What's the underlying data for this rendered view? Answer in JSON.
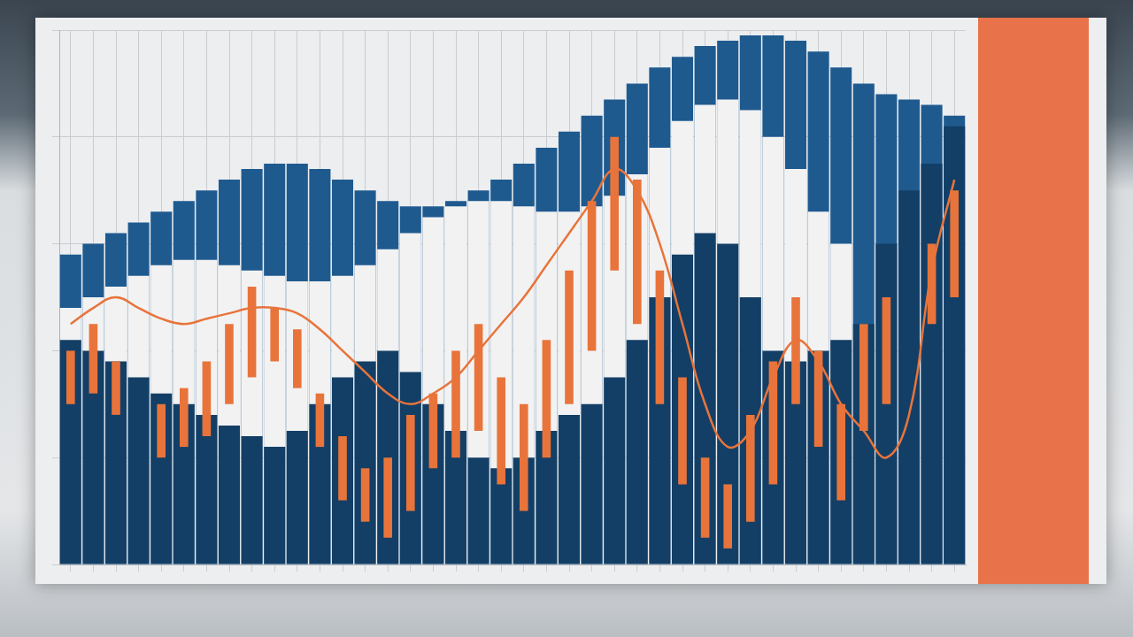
{
  "chart_data": {
    "type": "bar",
    "categories": [
      null,
      null,
      null,
      null,
      null,
      null,
      null,
      null,
      null,
      null,
      null,
      null,
      null,
      null,
      null,
      null,
      null,
      null,
      null,
      null,
      null,
      null,
      null,
      null,
      null,
      null,
      null,
      null,
      null,
      null,
      null,
      null,
      null,
      null,
      null,
      null,
      null,
      null,
      null,
      null
    ],
    "ylim": [
      0,
      100
    ],
    "yticks": [
      0,
      20,
      40,
      60,
      80,
      100
    ],
    "grid": true,
    "tick_labels": false,
    "series": [
      {
        "type": "bar",
        "color": "#1f5a8f",
        "values": [
          58,
          60,
          62,
          64,
          66,
          68,
          70,
          72,
          74,
          75,
          75,
          74,
          72,
          70,
          68,
          67,
          67,
          68,
          70,
          72,
          75,
          78,
          81,
          84,
          87,
          90,
          93,
          95,
          97,
          98,
          99,
          99,
          98,
          96,
          93,
          90,
          88,
          87,
          86,
          84
        ]
      },
      {
        "type": "bar",
        "color": "#f2f2f2",
        "values": [
          48,
          50,
          52,
          54,
          56,
          57,
          57,
          56,
          55,
          54,
          53,
          53,
          54,
          56,
          59,
          62,
          65,
          67,
          68,
          68,
          67,
          66,
          66,
          67,
          69,
          73,
          78,
          83,
          86,
          87,
          85,
          80,
          74,
          66,
          60,
          null,
          null,
          null,
          null,
          null
        ]
      },
      {
        "type": "bar",
        "color": "#133f66",
        "values": [
          42,
          40,
          38,
          35,
          32,
          30,
          28,
          26,
          24,
          22,
          25,
          30,
          35,
          38,
          40,
          36,
          30,
          25,
          20,
          18,
          20,
          25,
          28,
          30,
          35,
          42,
          50,
          58,
          62,
          60,
          50,
          40,
          38,
          40,
          42,
          45,
          60,
          70,
          75,
          82
        ]
      },
      {
        "type": "bar",
        "color": "#e8743b",
        "values": [
          [
            30,
            40
          ],
          [
            32,
            45
          ],
          [
            28,
            38
          ],
          null,
          [
            20,
            30
          ],
          [
            22,
            33
          ],
          [
            24,
            38
          ],
          [
            30,
            45
          ],
          [
            35,
            52
          ],
          [
            38,
            48
          ],
          [
            33,
            44
          ],
          [
            22,
            32
          ],
          [
            12,
            24
          ],
          [
            8,
            18
          ],
          [
            5,
            20
          ],
          [
            10,
            28
          ],
          [
            18,
            32
          ],
          [
            20,
            40
          ],
          [
            25,
            45
          ],
          [
            15,
            35
          ],
          [
            10,
            30
          ],
          [
            20,
            42
          ],
          [
            30,
            55
          ],
          [
            40,
            68
          ],
          [
            55,
            80
          ],
          [
            45,
            72
          ],
          [
            30,
            55
          ],
          [
            15,
            35
          ],
          [
            5,
            20
          ],
          [
            3,
            15
          ],
          [
            8,
            28
          ],
          [
            15,
            38
          ],
          [
            30,
            50
          ],
          [
            22,
            40
          ],
          [
            12,
            30
          ],
          [
            25,
            45
          ],
          [
            30,
            50
          ],
          null,
          [
            45,
            60
          ],
          [
            50,
            70
          ]
        ]
      },
      {
        "type": "line",
        "color": "#e8743b",
        "values": [
          45,
          48,
          50,
          48,
          46,
          45,
          46,
          47,
          48,
          48,
          47,
          44,
          40,
          36,
          32,
          30,
          32,
          35,
          40,
          45,
          50,
          56,
          62,
          68,
          74,
          70,
          60,
          45,
          30,
          22,
          25,
          35,
          42,
          38,
          30,
          25,
          20,
          28,
          55,
          72
        ]
      }
    ]
  }
}
